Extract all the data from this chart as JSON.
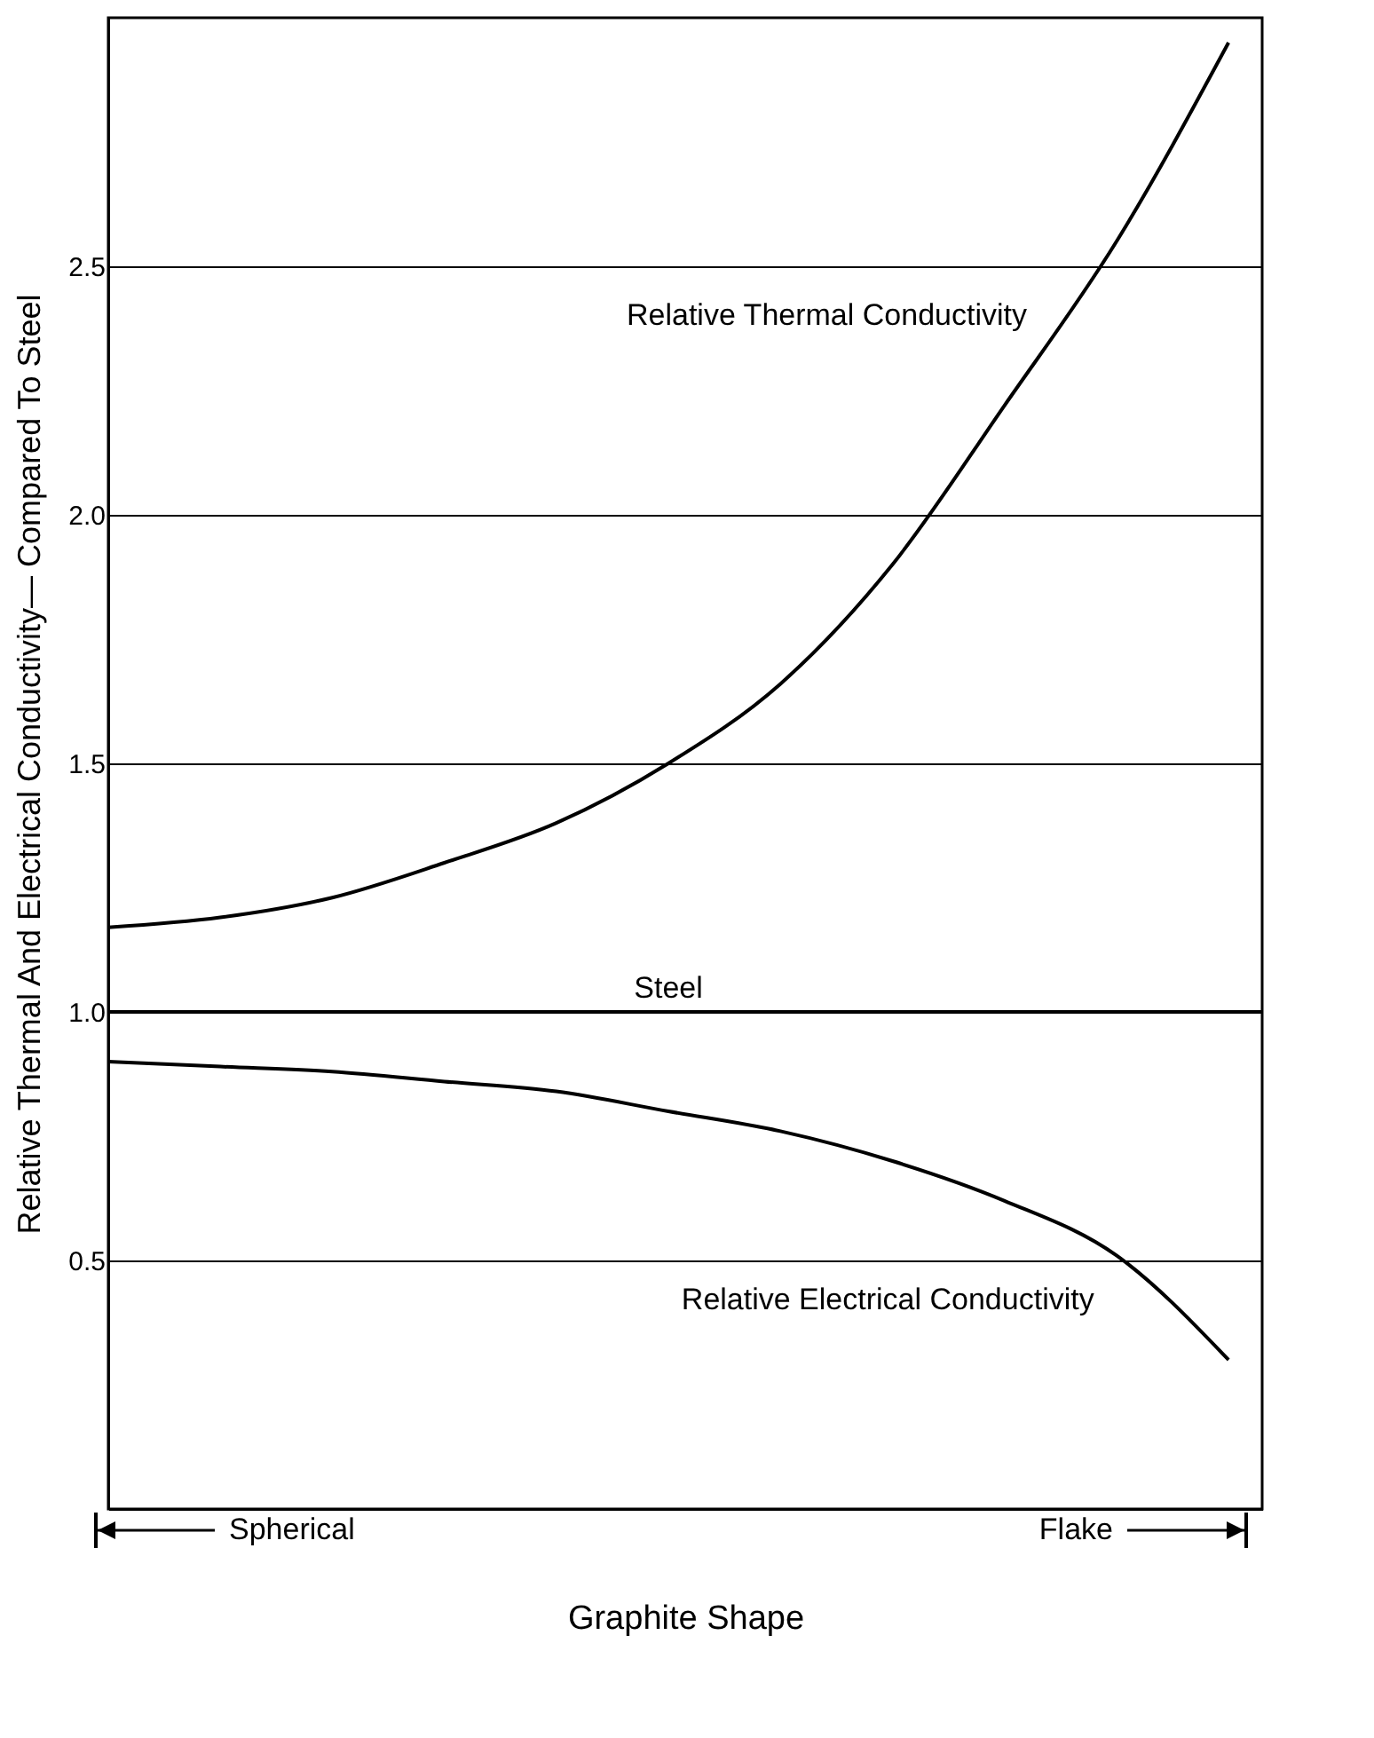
{
  "chart_data": {
    "type": "line",
    "ylabel": "Relative Thermal And Electrical Conductivity— Compared To Steel",
    "xlabel": "Graphite Shape",
    "categories": [
      null,
      null,
      null,
      null,
      null,
      null,
      null,
      null,
      null,
      null,
      null
    ],
    "series": [
      {
        "name": "Relative Thermal Conductivity",
        "color": "#000000",
        "values": [
          1.17,
          1.19,
          1.23,
          1.3,
          1.38,
          1.5,
          1.66,
          1.9,
          2.22,
          2.55,
          2.95
        ]
      },
      {
        "name": "Relative Electrical Conductivity",
        "color": "#000000",
        "values": [
          0.9,
          0.89,
          0.88,
          0.86,
          0.84,
          0.8,
          0.76,
          0.7,
          0.62,
          0.51,
          0.3
        ]
      }
    ],
    "ref_lines": [
      {
        "axis": "y",
        "value": 1.0,
        "label": "Steel",
        "color": "#000000"
      }
    ],
    "annotations": [
      "Spherical",
      "Flake"
    ],
    "ylim": [
      0,
      3
    ],
    "yticks": [
      0.5,
      {
        "value": 1,
        "label": "1.0"
      },
      1.5,
      {
        "value": 2,
        "label": "2.0"
      },
      2.5
    ],
    "grid": "y"
  }
}
